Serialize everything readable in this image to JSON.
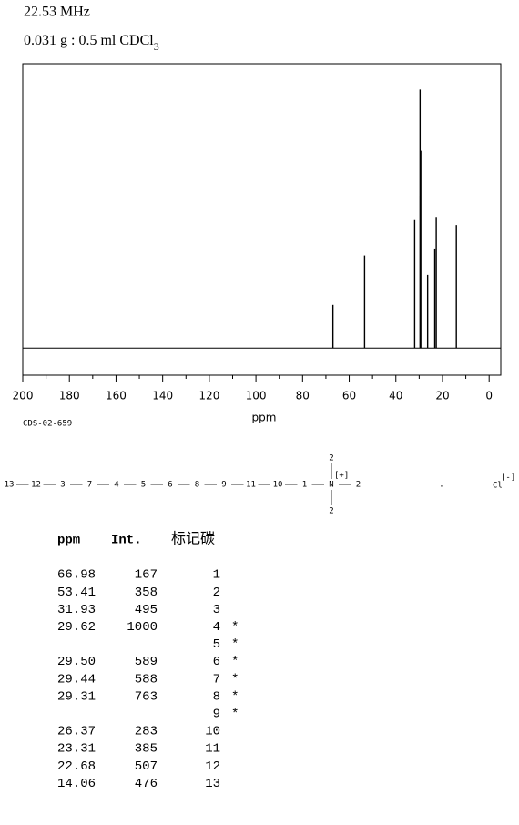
{
  "header": {
    "frequency": "22.53 MHz",
    "sample": "0.031 g : 0.5 ml CDCl",
    "sample_subscript": "3"
  },
  "chart_data": {
    "type": "stem",
    "code": "CDS-02-659",
    "x_label": "ppm",
    "x": [
      66.98,
      53.41,
      31.93,
      29.62,
      29.5,
      29.44,
      29.31,
      26.37,
      23.31,
      22.68,
      14.06
    ],
    "values": [
      167,
      358,
      495,
      1000,
      589,
      588,
      763,
      283,
      385,
      507,
      476
    ],
    "color": "#000000",
    "xlim": [
      200,
      -5
    ],
    "ylim": [
      -105,
      1100
    ],
    "xticks": [
      200,
      180,
      160,
      140,
      120,
      100,
      80,
      60,
      40,
      20,
      0
    ],
    "xminor_ticks": [
      190,
      170,
      150,
      130,
      110,
      90,
      70,
      50,
      30,
      10
    ]
  },
  "structure": {
    "chain": [
      "13",
      "12",
      "3",
      "7",
      "4",
      "5",
      "6",
      "8",
      "9",
      "11",
      "10",
      "1",
      "N",
      "2"
    ],
    "top": "2",
    "bottom": "2",
    "charge": "[+]",
    "separator": ".",
    "counterion": "Cl",
    "counter_charge": "[-]"
  },
  "table": {
    "header": [
      "ppm",
      "Int.",
      "标记碳"
    ],
    "rows": [
      [
        "66.98",
        "167",
        "1",
        null
      ],
      [
        "53.41",
        "358",
        "2",
        null
      ],
      [
        "31.93",
        "495",
        "3",
        null
      ],
      [
        "29.62",
        "1000",
        "4",
        "*"
      ],
      [
        null,
        null,
        "5",
        "*"
      ],
      [
        "29.50",
        "589",
        "6",
        "*"
      ],
      [
        "29.44",
        "588",
        "7",
        "*"
      ],
      [
        "29.31",
        "763",
        "8",
        "*"
      ],
      [
        null,
        null,
        "9",
        "*"
      ],
      [
        "26.37",
        "283",
        "10",
        null
      ],
      [
        "23.31",
        "385",
        "11",
        null
      ],
      [
        "22.68",
        "507",
        "12",
        null
      ],
      [
        "14.06",
        "476",
        "13",
        null
      ]
    ]
  }
}
